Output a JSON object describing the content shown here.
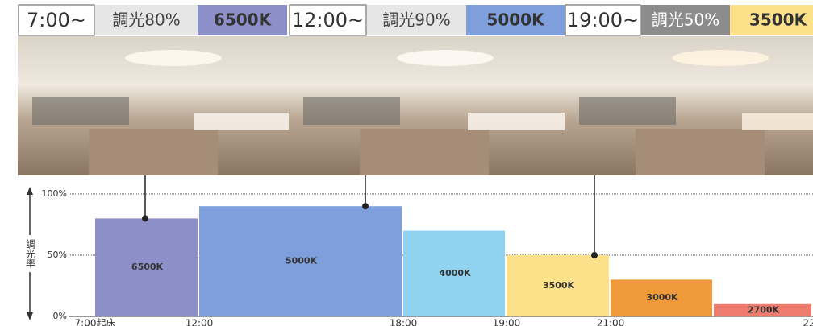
{
  "panels": [
    {
      "time": "7:00~",
      "dimming": "調光80%",
      "color_temp": "6500K",
      "temp_color": "#8d8fc9",
      "dim_bg": "#e6e6e6",
      "dim_fg": "#444444"
    },
    {
      "time": "12:00~",
      "dimming": "調光90%",
      "color_temp": "5000K",
      "temp_color": "#7f9fdc",
      "dim_bg": "#e6e6e6",
      "dim_fg": "#444444"
    },
    {
      "time": "19:00~",
      "dimming": "調光50%",
      "color_temp": "3500K",
      "temp_color": "#fde08a",
      "dim_bg": "#8c8c8c",
      "dim_fg": "#ffffff"
    }
  ],
  "chart_data": {
    "type": "bar",
    "y_label": "調光率",
    "categories": [
      "6500K",
      "5000K",
      "4000K",
      "3500K",
      "3000K",
      "2700K"
    ],
    "values": [
      80,
      90,
      70,
      50,
      30,
      10
    ],
    "colors": [
      "#8d8fc9",
      "#7f9fdc",
      "#8fd3f0",
      "#fde08a",
      "#f0993a",
      "#ee7c6e"
    ],
    "x_labels": [
      "7:00起床",
      "12:00",
      "18:00",
      "19:00",
      "21:00",
      "22"
    ],
    "ylim": [
      0,
      100
    ],
    "yticks": [
      {
        "value": 0,
        "label": "0%"
      },
      {
        "value": 50,
        "label": "50%"
      },
      {
        "value": 100,
        "label": "100%"
      }
    ],
    "grid": true
  }
}
